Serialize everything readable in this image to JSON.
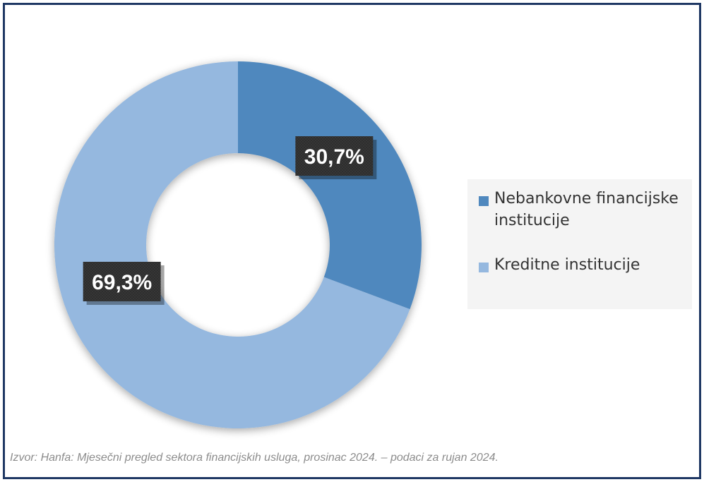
{
  "chart_data": {
    "type": "pie",
    "donut": true,
    "categories": [
      "Nebankovne financijske institucije",
      "Kreditne institucije"
    ],
    "values": [
      30.7,
      69.3
    ],
    "data_labels": [
      "30,7%",
      "69,3%"
    ],
    "colors": [
      "#4f88be",
      "#95b8df"
    ],
    "legend_position": "right",
    "title": ""
  },
  "source_note": "Izvor: Hanfa: Mjesečni pregled sektora financijskih usluga, prosinac 2024. – podaci za rujan 2024."
}
